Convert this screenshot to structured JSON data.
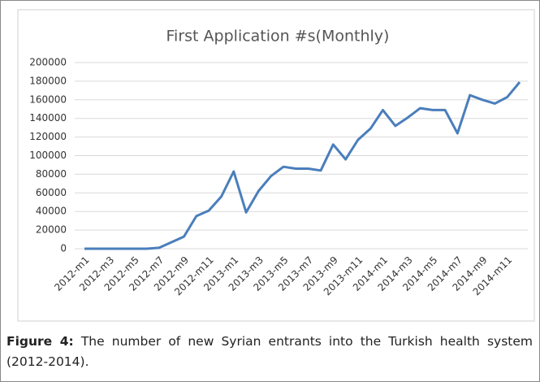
{
  "chart_data": {
    "type": "line",
    "title": "First Application #s(Monthly)",
    "categories": [
      "2012-m1",
      null,
      "2012-m3",
      null,
      "2012-m5",
      null,
      "2012-m7",
      null,
      "2012-m9",
      null,
      "2012-m11",
      null,
      "2013-m1",
      null,
      "2013-m3",
      null,
      "2013-m5",
      null,
      "2013-m7",
      null,
      "2013-m9",
      null,
      "2013-m11",
      null,
      "2014-m1",
      null,
      "2014-m3",
      null,
      "2014-m5",
      null,
      "2014-m7",
      null,
      "2014-m9",
      null,
      "2014-m11",
      null
    ],
    "values": [
      0,
      0,
      0,
      0,
      0,
      0,
      1000,
      7000,
      13000,
      35000,
      41000,
      56000,
      83000,
      39000,
      62000,
      78000,
      88000,
      86000,
      86000,
      84000,
      112000,
      96000,
      117000,
      129000,
      149000,
      132000,
      141000,
      151000,
      149000,
      149000,
      124000,
      165000,
      160000,
      156000,
      163000,
      179000
    ],
    "color": "#4a7ebb",
    "ylim": [
      0,
      200000
    ],
    "yticks": [
      0,
      20000,
      40000,
      60000,
      80000,
      100000,
      120000,
      140000,
      160000,
      180000,
      200000
    ],
    "grid": true
  },
  "caption": {
    "label": "Figure 4:",
    "text": "The number of new Syrian entrants into the Turkish health system (2012-2014)."
  }
}
